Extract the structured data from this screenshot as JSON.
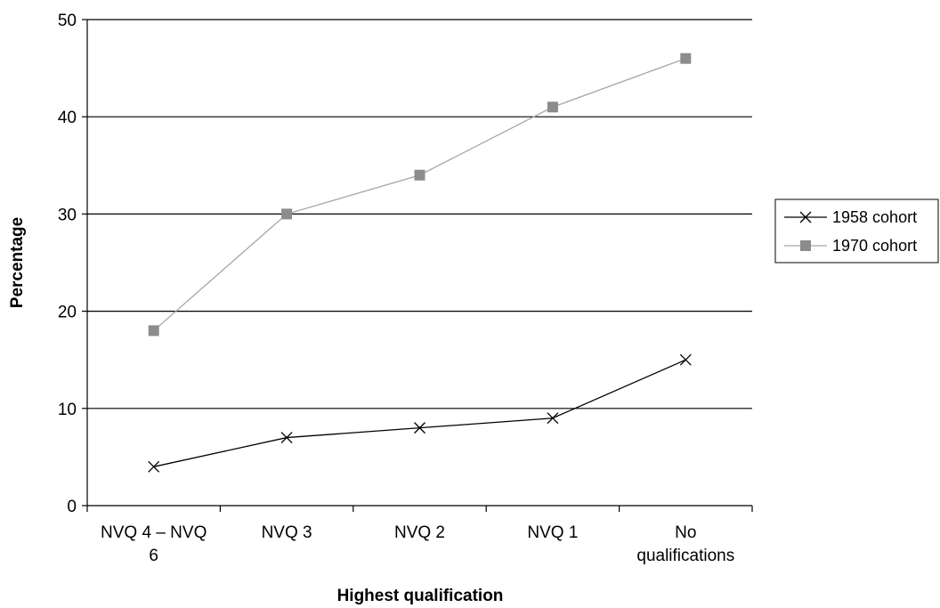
{
  "chart_data": {
    "type": "line",
    "xlabel": "Highest qualification",
    "ylabel": "Percentage",
    "categories": [
      [
        "NVQ 4 – NVQ",
        "6"
      ],
      [
        "NVQ 3"
      ],
      [
        "NVQ 2"
      ],
      [
        "NVQ 1"
      ],
      [
        "No",
        "qualifications"
      ]
    ],
    "ylim": [
      0,
      50
    ],
    "yticks": [
      0,
      10,
      20,
      30,
      40,
      50
    ],
    "grid": true,
    "legend_position": "right",
    "series": [
      {
        "name": "1958 cohort",
        "marker": "x",
        "color": "#000000",
        "values": [
          4,
          7,
          8,
          9,
          15
        ]
      },
      {
        "name": "1970 cohort",
        "marker": "square",
        "color": "#a6a6a6",
        "marker_color": "#8c8c8c",
        "values": [
          18,
          30,
          34,
          41,
          46
        ]
      }
    ]
  }
}
